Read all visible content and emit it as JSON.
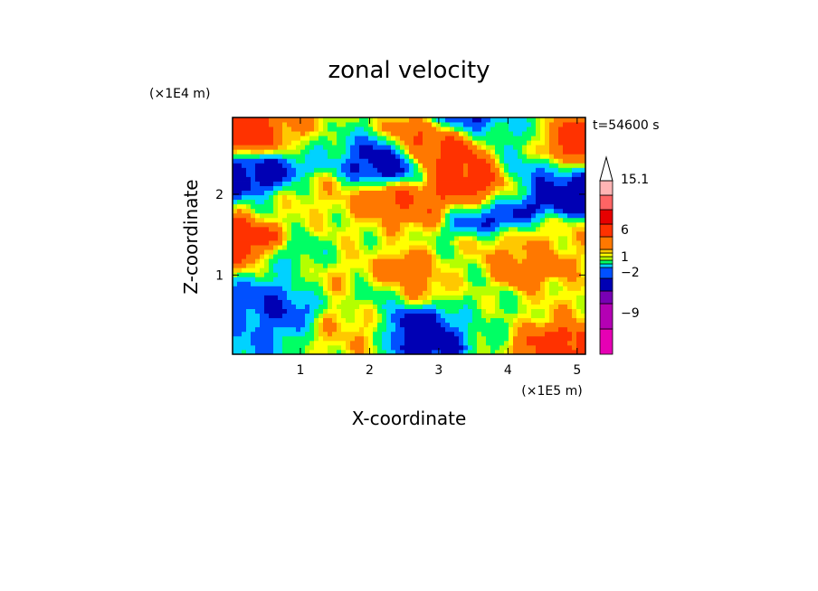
{
  "chart_data": {
    "type": "heatmap",
    "title": "zonal velocity",
    "xlabel": "X-coordinate",
    "ylabel": "Z-coordinate",
    "x_scale_note": "(×1E5 m)",
    "y_scale_note": "(×1E4 m)",
    "time_label": "t=54600 s",
    "xlim": [
      0.02,
      5.12
    ],
    "ylim": [
      0.02,
      2.95
    ],
    "x_ticks": [
      "1",
      "2",
      "3",
      "4",
      "5"
    ],
    "x_tick_values": [
      1,
      2,
      3,
      4,
      5
    ],
    "y_ticks": [
      "1",
      "2"
    ],
    "y_tick_values": [
      1,
      2
    ],
    "colorbar": {
      "colors": [
        "#e600b4",
        "#b400b4",
        "#7800b4",
        "#0000b4",
        "#0050ff",
        "#00d2ff",
        "#00ff64",
        "#b4ff00",
        "#ffff00",
        "#ffc800",
        "#ff7800",
        "#ff3200",
        "#e60000",
        "#ff6464",
        "#ffb4b4",
        "#ffffff"
      ],
      "level_values": [
        -12,
        -9,
        -6,
        -3,
        -2,
        -1,
        0,
        0.5,
        1,
        1.5,
        3,
        6,
        9,
        12,
        15.1
      ],
      "tick_labels": [
        "15.1",
        "6",
        "1",
        "−2",
        "−9"
      ]
    },
    "field_sketch": [
      {
        "x": 0.3,
        "z": 2.7,
        "value": 5
      },
      {
        "x": 0.9,
        "z": 2.8,
        "value": 2
      },
      {
        "x": 0.5,
        "z": 2.3,
        "value": -4
      },
      {
        "x": 0.1,
        "z": 2.2,
        "value": -4
      },
      {
        "x": 1.3,
        "z": 2.6,
        "value": -1
      },
      {
        "x": 2.2,
        "z": 2.4,
        "value": -4
      },
      {
        "x": 2.4,
        "z": 1.9,
        "value": 3
      },
      {
        "x": 2.9,
        "z": 2.7,
        "value": 4
      },
      {
        "x": 3.2,
        "z": 2.5,
        "value": 4
      },
      {
        "x": 3.3,
        "z": 2.95,
        "value": -4
      },
      {
        "x": 3.6,
        "z": 2.0,
        "value": 5
      },
      {
        "x": 3.8,
        "z": 1.8,
        "value": -5
      },
      {
        "x": 4.5,
        "z": 2.2,
        "value": -2
      },
      {
        "x": 4.9,
        "z": 2.0,
        "value": -5
      },
      {
        "x": 4.0,
        "z": 2.7,
        "value": -1
      },
      {
        "x": 5.0,
        "z": 2.6,
        "value": 4
      },
      {
        "x": 0.15,
        "z": 1.45,
        "value": 5
      },
      {
        "x": 0.9,
        "z": 1.2,
        "value": -1
      },
      {
        "x": 1.5,
        "z": 1.0,
        "value": 1
      },
      {
        "x": 2.4,
        "z": 0.8,
        "value": -2
      },
      {
        "x": 2.6,
        "z": 0.9,
        "value": 5
      },
      {
        "x": 2.8,
        "z": 0.35,
        "value": -5
      },
      {
        "x": 3.2,
        "z": 1.0,
        "value": 0
      },
      {
        "x": 3.5,
        "z": 0.5,
        "value": 0
      },
      {
        "x": 4.2,
        "z": 1.2,
        "value": 3
      },
      {
        "x": 4.7,
        "z": 1.5,
        "value": 1
      },
      {
        "x": 5.0,
        "z": 0.6,
        "value": 1
      },
      {
        "x": 4.9,
        "z": 0.15,
        "value": 4
      },
      {
        "x": 0.6,
        "z": 0.6,
        "value": -3
      },
      {
        "x": 1.8,
        "z": 0.35,
        "value": 1.2
      },
      {
        "x": 0.1,
        "z": 0.2,
        "value": -2
      },
      {
        "x": 1.2,
        "z": 2.0,
        "value": 1
      },
      {
        "x": 3.9,
        "z": 1.35,
        "value": 0.8
      },
      {
        "x": 1.9,
        "z": 1.55,
        "value": 0.6
      },
      {
        "x": 0.6,
        "z": 1.8,
        "value": 0.3
      }
    ]
  }
}
